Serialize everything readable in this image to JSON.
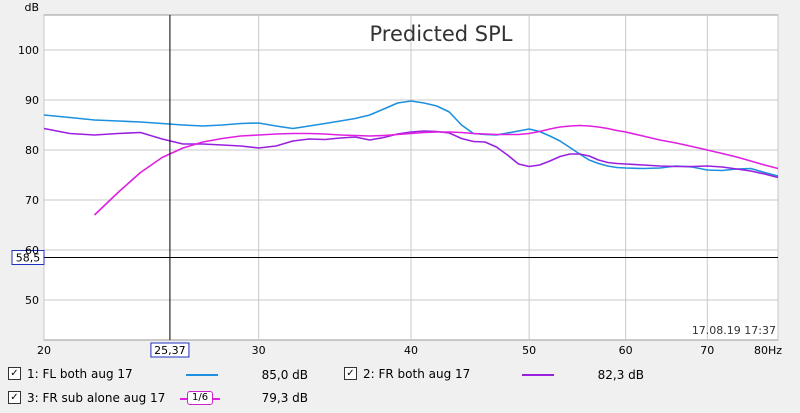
{
  "chart_data": {
    "type": "line",
    "title": "Predicted SPL",
    "ylabel": "dB",
    "xunit": "Hz",
    "x_scale": "log",
    "xlim": [
      20,
      80
    ],
    "ylim": [
      42,
      107
    ],
    "y_ticks": [
      50,
      60,
      70,
      80,
      90,
      100
    ],
    "x_ticks": [
      20,
      30,
      40,
      50,
      60,
      70,
      80
    ],
    "x_tick_labels": [
      "20",
      "30",
      "40",
      "50",
      "60",
      "70",
      "80Hz"
    ],
    "cursor": {
      "x_label": "25,37",
      "y_label": "58,5",
      "x": 25.37,
      "y": 58.5
    },
    "timestamp": "17.08.19 17:37",
    "series": [
      {
        "name": "1: FL both aug 17",
        "color": "#1e90e0",
        "value_label": "85,0 dB",
        "x": [
          20,
          21,
          22,
          23,
          24,
          25,
          26,
          27,
          28,
          29,
          30,
          31,
          32,
          33,
          34,
          35,
          36,
          37,
          38,
          39,
          40,
          41,
          42,
          43,
          44,
          45,
          46,
          47,
          48,
          49,
          50,
          51,
          52,
          53,
          54,
          55,
          56,
          57,
          58,
          59,
          60,
          62,
          64,
          66,
          68,
          70,
          72,
          74,
          76,
          78,
          80
        ],
        "y": [
          87.0,
          86.5,
          86.0,
          85.8,
          85.6,
          85.3,
          85.0,
          84.8,
          85.0,
          85.3,
          85.4,
          84.8,
          84.3,
          84.8,
          85.3,
          85.8,
          86.3,
          87.0,
          88.2,
          89.4,
          89.8,
          89.4,
          88.8,
          87.6,
          85.0,
          83.3,
          83.1,
          83.0,
          83.4,
          83.8,
          84.2,
          83.7,
          82.8,
          81.8,
          80.5,
          79.2,
          78.0,
          77.3,
          76.8,
          76.5,
          76.4,
          76.3,
          76.4,
          76.8,
          76.6,
          76.0,
          75.9,
          76.2,
          76.3,
          75.5,
          74.8
        ]
      },
      {
        "name": "2: FR both aug 17",
        "color": "#9a20e0",
        "value_label": "82,3 dB",
        "x": [
          20,
          21,
          22,
          23,
          24,
          25,
          26,
          27,
          28,
          29,
          30,
          31,
          32,
          33,
          34,
          35,
          36,
          37,
          38,
          39,
          40,
          41,
          42,
          43,
          44,
          45,
          46,
          47,
          48,
          49,
          50,
          51,
          52,
          53,
          54,
          55,
          56,
          57,
          58,
          59,
          60,
          62,
          64,
          66,
          68,
          70,
          72,
          74,
          76,
          78,
          80
        ],
        "y": [
          84.3,
          83.3,
          83.0,
          83.3,
          83.5,
          82.2,
          81.2,
          81.2,
          81.0,
          80.8,
          80.4,
          80.8,
          81.8,
          82.2,
          82.1,
          82.4,
          82.6,
          82.0,
          82.5,
          83.2,
          83.6,
          83.8,
          83.7,
          83.4,
          82.3,
          81.7,
          81.6,
          80.6,
          79.0,
          77.2,
          76.7,
          77.0,
          77.8,
          78.7,
          79.2,
          79.2,
          78.8,
          78.0,
          77.5,
          77.3,
          77.2,
          77.0,
          76.8,
          76.7,
          76.7,
          76.8,
          76.6,
          76.2,
          75.8,
          75.2,
          74.5
        ]
      },
      {
        "name": "3: FR sub alone aug 17",
        "color": "#e020e0",
        "value_label": "79,3 dB",
        "smoothing_label": "1/6",
        "x": [
          22,
          23,
          24,
          25,
          26,
          27,
          28,
          29,
          30,
          31,
          32,
          33,
          34,
          35,
          36,
          37,
          38,
          39,
          40,
          41,
          42,
          43,
          44,
          45,
          46,
          47,
          48,
          49,
          50,
          51,
          52,
          53,
          54,
          55,
          56,
          57,
          58,
          59,
          60,
          62,
          64,
          66,
          68,
          70,
          72,
          74,
          76,
          78,
          80
        ],
        "y": [
          67.0,
          71.5,
          75.5,
          78.5,
          80.4,
          81.6,
          82.3,
          82.8,
          83.0,
          83.2,
          83.3,
          83.3,
          83.2,
          83.0,
          82.9,
          82.8,
          82.9,
          83.1,
          83.3,
          83.5,
          83.6,
          83.6,
          83.5,
          83.3,
          83.2,
          83.1,
          83.1,
          83.1,
          83.3,
          83.7,
          84.2,
          84.6,
          84.8,
          84.9,
          84.8,
          84.6,
          84.3,
          83.9,
          83.6,
          82.8,
          82.0,
          81.4,
          80.7,
          80.0,
          79.3,
          78.6,
          77.8,
          77.0,
          76.3
        ]
      }
    ]
  }
}
